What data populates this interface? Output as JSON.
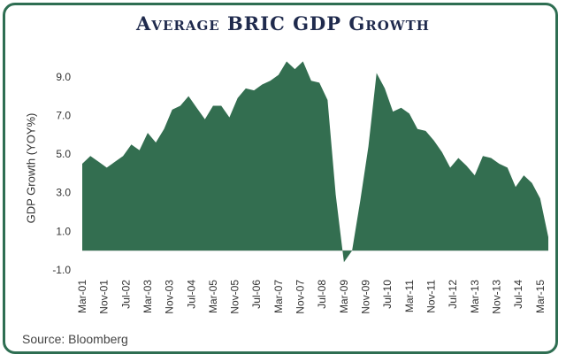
{
  "chart_data": {
    "type": "area",
    "title": "Average BRIC GDP Growth",
    "ylabel": "GDP Growth (YOY%)",
    "xlabel": "",
    "ylim": [
      -1.0,
      10.0
    ],
    "yticks": [
      -1.0,
      1.0,
      3.0,
      5.0,
      7.0,
      9.0
    ],
    "ytick_labels": [
      "-1.0",
      "1.0",
      "3.0",
      "5.0",
      "7.0",
      "9.0"
    ],
    "xtick_labels": [
      "Mar-01",
      "Nov-01",
      "Jul-02",
      "Mar-03",
      "Nov-03",
      "Jul-04",
      "Mar-05",
      "Nov-05",
      "Jul-06",
      "Mar-07",
      "Nov-07",
      "Jul-08",
      "Mar-09",
      "Nov-09",
      "Jul-10",
      "Mar-11",
      "Nov-11",
      "Jul-12",
      "Mar-13",
      "Nov-13",
      "Jul-14",
      "Mar-15"
    ],
    "grid": false,
    "legend": "none",
    "color": "#336e50",
    "series": [
      {
        "x": [
          "Mar-01",
          "Jun-01",
          "Sep-01",
          "Dec-01",
          "Mar-02",
          "Jun-02",
          "Sep-02",
          "Dec-02",
          "Mar-03",
          "Jun-03",
          "Sep-03",
          "Dec-03",
          "Mar-04",
          "Jun-04",
          "Sep-04",
          "Dec-04",
          "Mar-05",
          "Jun-05",
          "Sep-05",
          "Dec-05",
          "Mar-06",
          "Jun-06",
          "Sep-06",
          "Dec-06",
          "Mar-07",
          "Jun-07",
          "Sep-07",
          "Dec-07",
          "Mar-08",
          "Jun-08",
          "Sep-08",
          "Dec-08",
          "Mar-09",
          "Jun-09",
          "Sep-09",
          "Dec-09",
          "Mar-10",
          "Jun-10",
          "Sep-10",
          "Dec-10",
          "Mar-11",
          "Jun-11",
          "Sep-11",
          "Dec-11",
          "Mar-12",
          "Jun-12",
          "Sep-12",
          "Dec-12",
          "Mar-13",
          "Jun-13",
          "Sep-13",
          "Dec-13",
          "Mar-14",
          "Jun-14",
          "Sep-14",
          "Dec-14",
          "Mar-15",
          "Jun-15"
        ],
        "values": [
          4.5,
          4.9,
          4.6,
          4.3,
          4.6,
          4.9,
          5.5,
          5.2,
          6.1,
          5.6,
          6.3,
          7.3,
          7.5,
          8.0,
          7.4,
          6.8,
          7.5,
          7.5,
          6.9,
          7.9,
          8.4,
          8.3,
          8.6,
          8.8,
          9.1,
          9.8,
          9.4,
          9.8,
          8.8,
          8.7,
          7.8,
          2.9,
          -0.6,
          0.0,
          2.6,
          5.4,
          9.2,
          8.4,
          7.2,
          7.4,
          7.1,
          6.3,
          6.2,
          5.7,
          5.1,
          4.3,
          4.8,
          4.4,
          3.9,
          4.9,
          4.8,
          4.5,
          4.3,
          3.3,
          3.9,
          3.5,
          2.7,
          0.7
        ]
      }
    ]
  }
}
